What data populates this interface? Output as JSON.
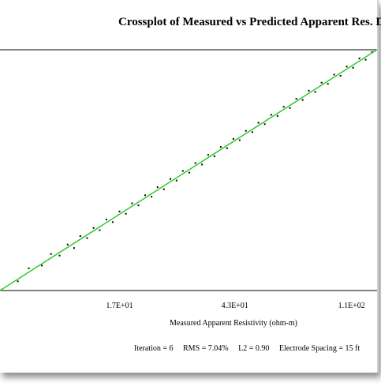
{
  "chart_data": {
    "type": "scatter",
    "title": "Crossplot of Measured vs Predicted Apparent Res. Data",
    "xlabel": "Measured Apparent Resistivity (ohm-m)",
    "ylabel": "",
    "x_scale": "log",
    "x_ticks": [
      {
        "value": 17,
        "label": "1.7E+01"
      },
      {
        "value": 43,
        "label": "4.3E+01"
      },
      {
        "value": 110,
        "label": "1.1E+02"
      }
    ],
    "xlim": [
      6.5,
      135
    ],
    "ylim": [
      6.5,
      135
    ],
    "reference_line": {
      "type": "y=x",
      "color": "#2ecc2e"
    },
    "point_color": "#000000",
    "series": [
      {
        "points": [
          [
            7.5,
            7.3
          ],
          [
            8.2,
            8.6
          ],
          [
            9.1,
            8.9
          ],
          [
            9.8,
            10.3
          ],
          [
            10.5,
            10.1
          ],
          [
            11.2,
            11.6
          ],
          [
            11.8,
            11.1
          ],
          [
            12.4,
            12.9
          ],
          [
            13.1,
            12.6
          ],
          [
            13.8,
            14.3
          ],
          [
            14.5,
            13.9
          ],
          [
            15.3,
            15.9
          ],
          [
            16.1,
            15.4
          ],
          [
            17.0,
            17.6
          ],
          [
            17.9,
            17.1
          ],
          [
            18.8,
            19.5
          ],
          [
            19.8,
            19.0
          ],
          [
            20.9,
            21.6
          ],
          [
            22.0,
            21.2
          ],
          [
            23.1,
            23.9
          ],
          [
            24.3,
            23.3
          ],
          [
            25.6,
            26.5
          ],
          [
            26.9,
            26.0
          ],
          [
            28.3,
            29.3
          ],
          [
            29.8,
            28.7
          ],
          [
            31.3,
            32.4
          ],
          [
            33.0,
            31.8
          ],
          [
            34.7,
            35.9
          ],
          [
            36.5,
            35.3
          ],
          [
            38.4,
            39.7
          ],
          [
            40.4,
            39.0
          ],
          [
            42.5,
            43.9
          ],
          [
            44.7,
            43.2
          ],
          [
            47.0,
            48.6
          ],
          [
            49.5,
            47.8
          ],
          [
            52.0,
            53.8
          ],
          [
            54.7,
            52.9
          ],
          [
            57.6,
            59.5
          ],
          [
            60.6,
            58.6
          ],
          [
            63.7,
            65.8
          ],
          [
            67.0,
            64.8
          ],
          [
            70.5,
            72.8
          ],
          [
            74.2,
            71.7
          ],
          [
            78.0,
            80.6
          ],
          [
            82.1,
            79.3
          ],
          [
            86.4,
            89.2
          ],
          [
            90.9,
            87.9
          ],
          [
            95.6,
            98.7
          ],
          [
            100.6,
            97.2
          ],
          [
            105.8,
            109.2
          ],
          [
            111.3,
            107.6
          ],
          [
            117.1,
            120.9
          ],
          [
            123.2,
            119.1
          ],
          [
            129.6,
            131.0
          ]
        ]
      }
    ],
    "stats": {
      "iteration": "Iteration = 6",
      "rms": "RMS = 7.04%",
      "l2": "L2 = 0.90",
      "spacing": "Electrode Spacing = 15 ft"
    }
  }
}
